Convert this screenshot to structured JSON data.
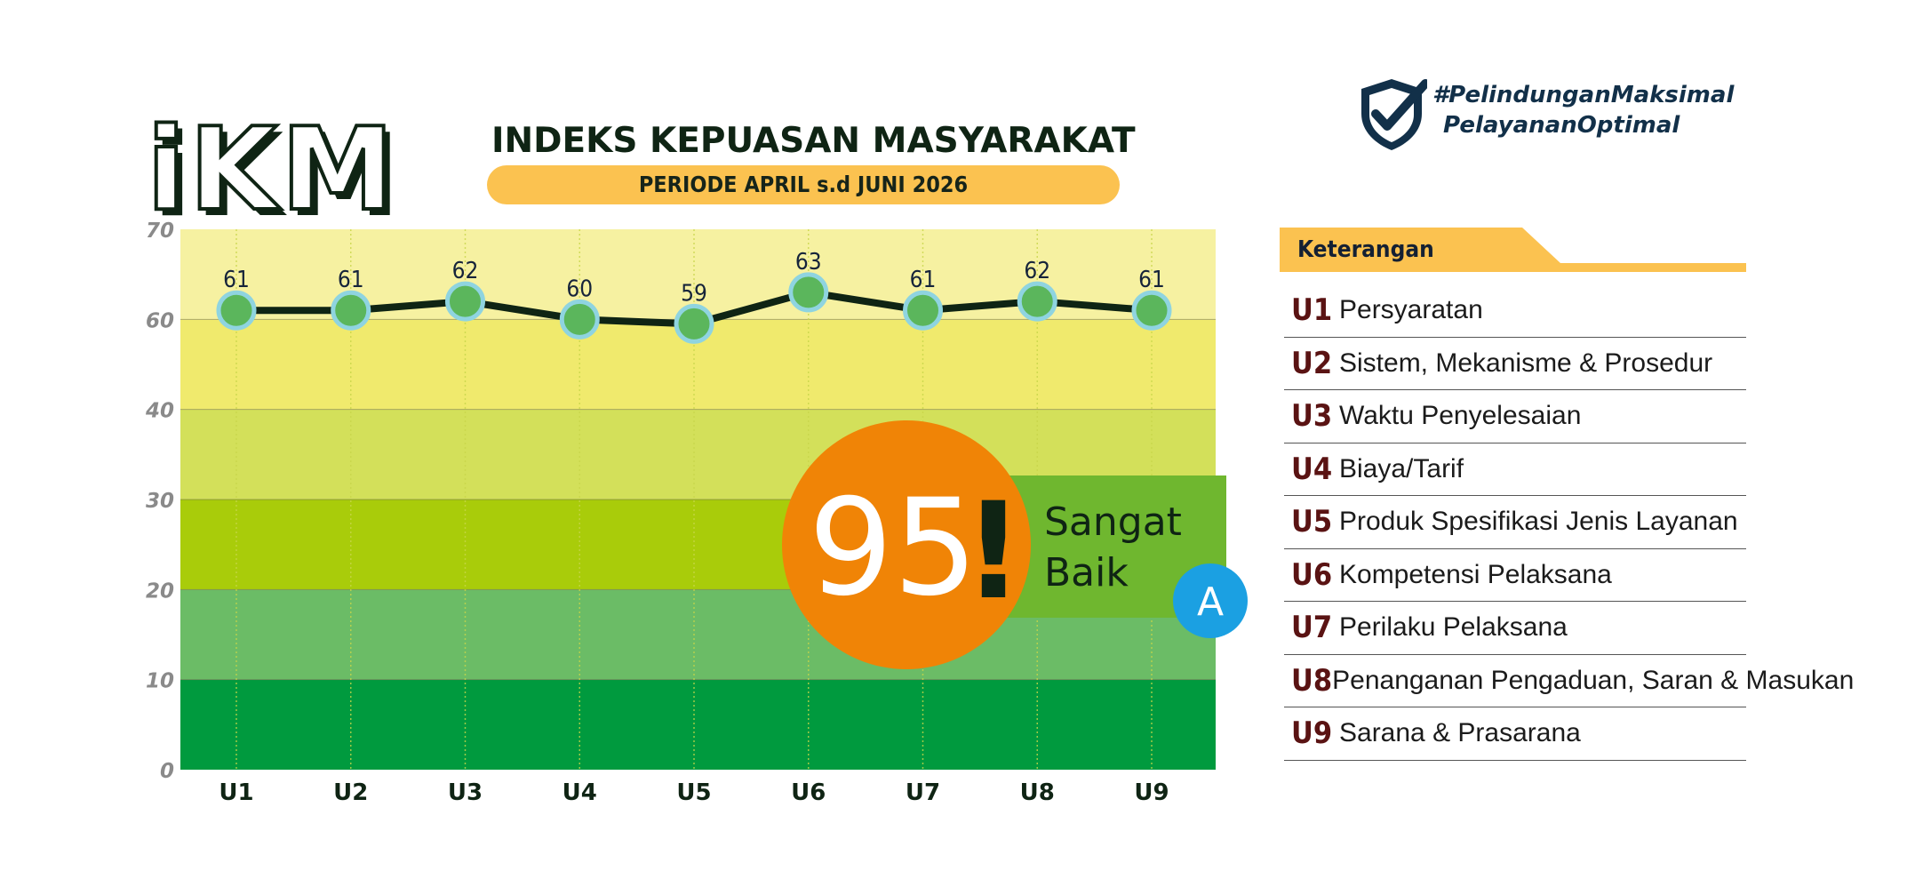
{
  "logo": {
    "text": "iKM"
  },
  "header": {
    "title": "INDEKS KEPUASAN MASYARAKAT",
    "period": "PERIODE APRIL s.d JUNI 2026"
  },
  "hashtag": {
    "line1": "#PelindunganMaksimal",
    "line2": "PelayananOptimal",
    "icon": "shield-check-icon"
  },
  "score": {
    "value": "95",
    "exclaim": "!",
    "label_line1": "Sangat",
    "label_line2": "Baik",
    "grade": "A",
    "colors": {
      "circle": "#f08406",
      "banner": "#6fb72f",
      "grade": "#1ba0e2"
    }
  },
  "chart_data": {
    "type": "line",
    "categories": [
      "U1",
      "U2",
      "U3",
      "U4",
      "U5",
      "U6",
      "U7",
      "U8",
      "U9"
    ],
    "values": [
      61,
      61,
      62,
      60,
      59,
      63,
      61,
      62,
      61
    ],
    "y_ticks": [
      0,
      10,
      20,
      30,
      40,
      60,
      70
    ],
    "ylim": [
      0,
      70
    ],
    "background_bands": [
      {
        "from": 0,
        "to": 10,
        "color": "#009a3e"
      },
      {
        "from": 10,
        "to": 20,
        "color": "#6bbc66"
      },
      {
        "from": 20,
        "to": 30,
        "color": "#a9cc0a"
      },
      {
        "from": 30,
        "to": 40,
        "color": "#d3e05a"
      },
      {
        "from": 40,
        "to": 60,
        "color": "#f0ea6d"
      },
      {
        "from": 60,
        "to": 70,
        "color": "#f6f1a1"
      }
    ],
    "line_color": "#0f2414",
    "marker_color": "#5bb65c",
    "marker_stroke": "#8fd4e0",
    "data_labels": true,
    "grid": false
  },
  "legend": {
    "title": "Keterangan",
    "items": [
      {
        "code": "U1",
        "label": "Persyaratan"
      },
      {
        "code": "U2",
        "label": "Sistem, Mekanisme & Prosedur"
      },
      {
        "code": "U3",
        "label": "Waktu Penyelesaian"
      },
      {
        "code": "U4",
        "label": "Biaya/Tarif"
      },
      {
        "code": "U5",
        "label": "Produk Spesifikasi Jenis Layanan"
      },
      {
        "code": "U6",
        "label": "Kompetensi Pelaksana"
      },
      {
        "code": "U7",
        "label": "Perilaku Pelaksana"
      },
      {
        "code": "U8",
        "label": "Penanganan Pengaduan, Saran & Masukan"
      },
      {
        "code": "U9",
        "label": "Sarana & Prasarana"
      }
    ]
  }
}
